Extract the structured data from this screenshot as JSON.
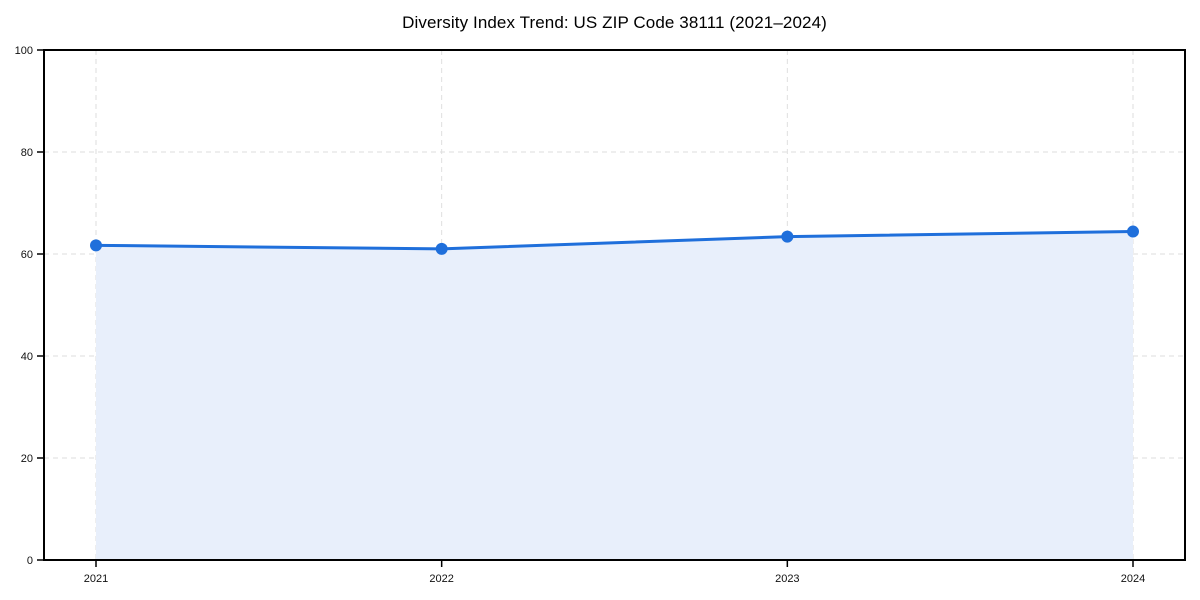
{
  "chart_data": {
    "type": "line",
    "title": "Diversity Index Trend: US ZIP Code 38111 (2021–2024)",
    "x": [
      "2021",
      "2022",
      "2023",
      "2024"
    ],
    "series": [
      {
        "name": "Diversity Index",
        "values": [
          61.7,
          61.0,
          63.4,
          64.4
        ]
      }
    ],
    "xlabel": "",
    "ylabel": "",
    "ylim": [
      0,
      100
    ],
    "yticks": [
      0,
      20,
      40,
      60,
      80,
      100
    ],
    "grid": true,
    "grid_style": "dashed",
    "legend": false,
    "area_fill": true,
    "marker": "circle",
    "colors": {
      "line": "#1f6fdb",
      "marker": "#1f6fdb",
      "fill": "#e8effb",
      "gridline": "#dedede",
      "axis": "#000000",
      "tick_label": "#111111",
      "background": "#ffffff"
    }
  }
}
